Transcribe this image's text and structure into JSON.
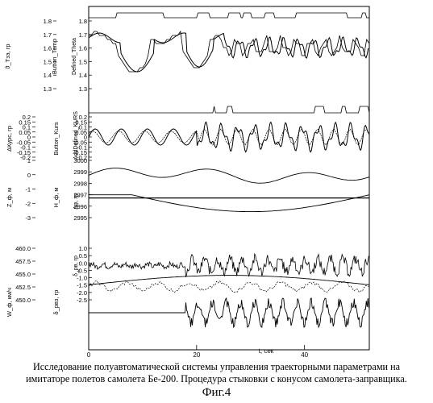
{
  "caption": {
    "line1": "Исследование  полуавтоматической системы управления траекторными параметрами на",
    "line2": "имитаторе полетов самолета Бе-200.  Процедура стыковки с конусом самолета-заправщика.",
    "figure": "Фиг.4"
  },
  "chart_data": {
    "type": "line",
    "x_axis": {
      "label": "t, сек",
      "ticks": [
        "0",
        "20",
        "40"
      ],
      "range": [
        0,
        52
      ]
    },
    "panels": [
      {
        "id": "theta",
        "left_axis": {
          "label": "ϑ_Тзэ, гр",
          "ticks": [
            "1.8",
            "1.7",
            "1.6",
            "1.5",
            "1.4",
            "1.3"
          ],
          "range": [
            1.26,
            1.82
          ]
        },
        "right_axis": {
          "label": "Button_Temp",
          "ticks": [
            "1.8",
            "1.7",
            "1.6",
            "1.5",
            "1.4",
            "1.3"
          ],
          "range": [
            1.26,
            1.82
          ]
        },
        "inner_ticks": [
          "1",
          "-1"
        ],
        "side_label": "Defined_Theta"
      },
      {
        "id": "course",
        "left_axis": {
          "label": "ΔКурс, гр",
          "ticks": [
            "0.2",
            "0.15",
            "0.1",
            "0.05",
            "0",
            "-0.05",
            "-0.1",
            "-0.15",
            "-0.2"
          ],
          "range": [
            -0.2,
            0.2
          ]
        },
        "right_axis": {
          "label": "Button_Kurs",
          "ticks": [
            "0.2",
            "0.15",
            "0.1",
            "0.05",
            "0",
            "-0.05",
            "-0.1",
            "-0.15",
            "-0.2"
          ],
          "range": [
            -0.2,
            0.2
          ]
        },
        "side_label": "AddDefined_KURS"
      },
      {
        "id": "height",
        "left_axis": {
          "label": "Z_ф, м",
          "ticks": [
            "1",
            "0",
            "-1",
            "-2",
            "-3"
          ],
          "range": [
            -3,
            1
          ]
        },
        "right_axis": {
          "label": "H_ф, м",
          "ticks": [
            "3000",
            "2999",
            "2998",
            "2997",
            "2996",
            "2995"
          ],
          "range": [
            2994.6,
            3000
          ]
        },
        "side_label": "Δφ, гр"
      },
      {
        "id": "speed",
        "left_axis": {
          "label": "W_ф, км/ч",
          "ticks": [
            "460.0",
            "457.5",
            "455.0",
            "452.5",
            "450.0"
          ],
          "range": [
            449,
            461
          ]
        },
        "right_axis": {
          "label": "δ_рвз, гр",
          "ticks": [
            "1.0",
            "0.5",
            "0.0",
            "-0.5",
            "-1.0",
            "-1.5",
            "-2.0",
            "-2.5"
          ],
          "range": [
            -2.6,
            1.3
          ]
        },
        "inner_ticks": [
          "1.0",
          "0.5",
          "0.0",
          "-0.5",
          "-1.0"
        ],
        "side_label": "δ_рв, гр"
      }
    ]
  }
}
